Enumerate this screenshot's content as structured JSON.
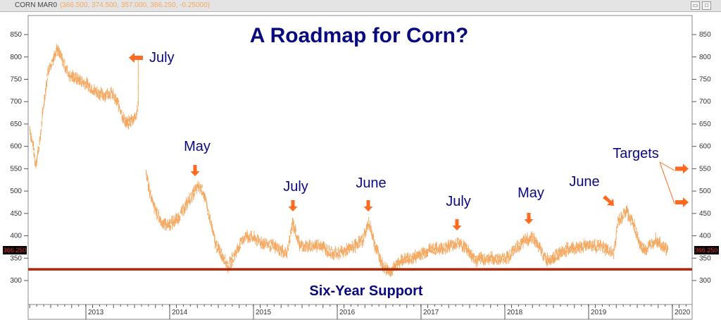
{
  "header": {
    "symbol": "CORN MAR0",
    "values": "(366.500, 374.500, 357.000, 366.250, -0.25000)"
  },
  "chart_data": {
    "type": "line",
    "title": "A Roadmap for Corn?",
    "xlabel": "",
    "ylabel": "",
    "ylim": [
      250,
      890
    ],
    "xlim": [
      2012.33,
      2020.25
    ],
    "yticks": [
      300,
      350,
      400,
      450,
      500,
      550,
      600,
      650,
      700,
      750,
      800,
      850
    ],
    "xticks": [
      "2013",
      "2014",
      "2015",
      "2016",
      "2017",
      "2018",
      "2019",
      "2020"
    ],
    "last_price_label": "366.250",
    "support": {
      "value": 325,
      "label": "Six-Year Support"
    },
    "series": [
      {
        "name": "CORN MAR0",
        "color": "#f5a860",
        "x": [
          2012.33,
          2012.37,
          2012.4,
          2012.45,
          2012.5,
          2012.55,
          2012.6,
          2012.65,
          2012.7,
          2012.75,
          2012.8,
          2012.9,
          2013.0,
          2013.1,
          2013.2,
          2013.3,
          2013.35,
          2013.4,
          2013.45,
          2013.5,
          2013.55,
          2013.6,
          2013.62,
          2013.63,
          2013.72,
          2013.76,
          2013.8,
          2013.9,
          2014.0,
          2014.1,
          2014.2,
          2014.3,
          2014.35,
          2014.4,
          2014.45,
          2014.55,
          2014.65,
          2014.7,
          2014.78,
          2014.9,
          2015.0,
          2015.1,
          2015.2,
          2015.3,
          2015.4,
          2015.47,
          2015.55,
          2015.65,
          2015.8,
          2015.9,
          2016.0,
          2016.15,
          2016.3,
          2016.38,
          2016.45,
          2016.55,
          2016.65,
          2016.75,
          2016.9,
          2017.0,
          2017.1,
          2017.2,
          2017.3,
          2017.45,
          2017.55,
          2017.65,
          2017.8,
          2017.95,
          2018.05,
          2018.15,
          2018.25,
          2018.33,
          2018.4,
          2018.5,
          2018.6,
          2018.75,
          2018.9,
          2019.0,
          2019.15,
          2019.3,
          2019.35,
          2019.45,
          2019.55,
          2019.62,
          2019.7,
          2019.8,
          2019.9,
          2019.95
        ],
        "y": [
          640,
          600,
          560,
          610,
          700,
          770,
          790,
          820,
          800,
          780,
          760,
          750,
          740,
          725,
          715,
          720,
          705,
          690,
          660,
          650,
          660,
          670,
          690,
          800,
          540,
          500,
          470,
          430,
          425,
          440,
          470,
          500,
          510,
          500,
          460,
          380,
          350,
          330,
          360,
          400,
          395,
          385,
          380,
          370,
          360,
          430,
          380,
          375,
          380,
          365,
          360,
          370,
          390,
          430,
          380,
          330,
          320,
          345,
          350,
          360,
          370,
          370,
          375,
          385,
          370,
          345,
          350,
          348,
          355,
          375,
          390,
          400,
          375,
          345,
          355,
          370,
          375,
          380,
          375,
          360,
          430,
          455,
          420,
          375,
          370,
          395,
          375,
          366
        ]
      }
    ],
    "annotations": [
      {
        "text": "July",
        "direction": "left"
      },
      {
        "text": "May",
        "direction": "down"
      },
      {
        "text": "July",
        "direction": "down"
      },
      {
        "text": "June",
        "direction": "down"
      },
      {
        "text": "July",
        "direction": "down"
      },
      {
        "text": "May",
        "direction": "down"
      },
      {
        "text": "June",
        "direction": "down-right"
      },
      {
        "text": "Targets",
        "direction": "right",
        "values": [
          550,
          475
        ]
      }
    ]
  }
}
